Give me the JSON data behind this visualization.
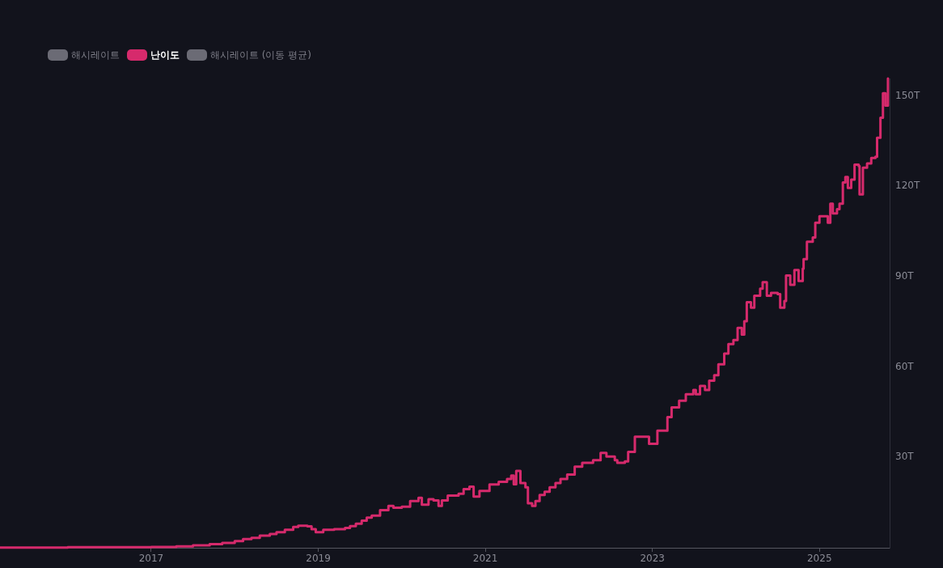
{
  "chart_data": {
    "type": "step",
    "series": [
      {
        "name": "해시레이트",
        "color": "#6b6b75"
      },
      {
        "name": "난이도",
        "color": "#d62a6c",
        "x": [
          2015.19,
          2016.0,
          2017.0,
          2017.3,
          2017.5,
          2017.7,
          2017.85,
          2018.0,
          2018.1,
          2018.2,
          2018.3,
          2018.42,
          2018.5,
          2018.6,
          2018.7,
          2018.76,
          2018.87,
          2018.92,
          2018.97,
          2019.06,
          2019.19,
          2019.32,
          2019.38,
          2019.45,
          2019.52,
          2019.58,
          2019.64,
          2019.74,
          2019.84,
          2019.9,
          2020.0,
          2020.1,
          2020.2,
          2020.24,
          2020.32,
          2020.38,
          2020.44,
          2020.48,
          2020.55,
          2020.68,
          2020.74,
          2020.81,
          2020.86,
          2020.93,
          2021.05,
          2021.16,
          2021.26,
          2021.31,
          2021.34,
          2021.37,
          2021.42,
          2021.48,
          2021.51,
          2021.56,
          2021.6,
          2021.65,
          2021.71,
          2021.77,
          2021.84,
          2021.9,
          2021.98,
          2022.07,
          2022.16,
          2022.29,
          2022.38,
          2022.45,
          2022.55,
          2022.58,
          2022.67,
          2022.71,
          2022.79,
          2022.96,
          2023.06,
          2023.18,
          2023.23,
          2023.32,
          2023.4,
          2023.49,
          2023.52,
          2023.57,
          2023.63,
          2023.68,
          2023.74,
          2023.79,
          2023.86,
          2023.91,
          2023.97,
          2024.02,
          2024.07,
          2024.1,
          2024.13,
          2024.18,
          2024.22,
          2024.29,
          2024.32,
          2024.37,
          2024.42,
          2024.5,
          2024.53,
          2024.58,
          2024.6,
          2024.65,
          2024.7,
          2024.75,
          2024.8,
          2024.81,
          2024.85,
          2024.92,
          2024.95,
          2025.0,
          2025.1,
          2025.13,
          2025.16,
          2025.21,
          2025.24,
          2025.28,
          2025.31,
          2025.34,
          2025.38,
          2025.42,
          2025.47,
          2025.48,
          2025.52,
          2025.57,
          2025.62,
          2025.67,
          2025.69,
          2025.73,
          2025.76,
          2025.79,
          2025.82
        ],
        "values": [
          0.1,
          0.2,
          0.3,
          0.5,
          0.8,
          1.2,
          1.6,
          2.2,
          2.9,
          3.3,
          4.0,
          4.6,
          5.2,
          6.0,
          6.9,
          7.3,
          7.1,
          6.2,
          5.2,
          6.0,
          6.2,
          6.6,
          7.2,
          8.0,
          9.0,
          10.0,
          10.7,
          12.5,
          13.9,
          13.3,
          13.6,
          15.5,
          16.6,
          14.3,
          16.1,
          15.7,
          13.9,
          15.7,
          17.3,
          17.9,
          19.5,
          20.3,
          17.0,
          18.9,
          21.0,
          21.9,
          22.8,
          24.0,
          21.1,
          25.5,
          21.5,
          20.1,
          14.8,
          13.9,
          15.5,
          17.5,
          18.6,
          20.1,
          21.5,
          22.8,
          24.3,
          26.9,
          28.2,
          29.1,
          31.5,
          30.3,
          29.1,
          28.2,
          28.7,
          31.8,
          36.9,
          34.5,
          38.9,
          43.4,
          46.6,
          48.8,
          51.0,
          52.4,
          51.0,
          53.7,
          52.4,
          55.5,
          57.3,
          60.9,
          64.5,
          67.6,
          69.0,
          73.0,
          70.8,
          75.2,
          81.5,
          79.7,
          83.7,
          86.0,
          88.2,
          83.7,
          84.6,
          84.2,
          79.7,
          81.9,
          90.4,
          87.3,
          92.2,
          88.6,
          92.7,
          95.8,
          101.6,
          103.0,
          107.9,
          110.1,
          107.9,
          114.2,
          111.0,
          112.4,
          114.2,
          121.3,
          123.1,
          119.5,
          122.2,
          127.2,
          126.7,
          117.3,
          126.2,
          127.6,
          129.4,
          129.8,
          136.1,
          142.8,
          150.9,
          146.8,
          155.8
        ]
      },
      {
        "name": "해시레이트 (이동 평균)",
        "color": "#6b6b75"
      }
    ],
    "xlim": [
      2015.19,
      2025.84
    ],
    "xticks": [
      2017,
      2019,
      2021,
      2023,
      2025
    ],
    "ylim": [
      0,
      155.8
    ],
    "yticks": [
      {
        "value": 30,
        "label": "30T"
      },
      {
        "value": 60,
        "label": "60T"
      },
      {
        "value": 90,
        "label": "90T"
      },
      {
        "value": 120,
        "label": "120T"
      },
      {
        "value": 150,
        "label": "150T"
      }
    ],
    "legend": "top left"
  }
}
